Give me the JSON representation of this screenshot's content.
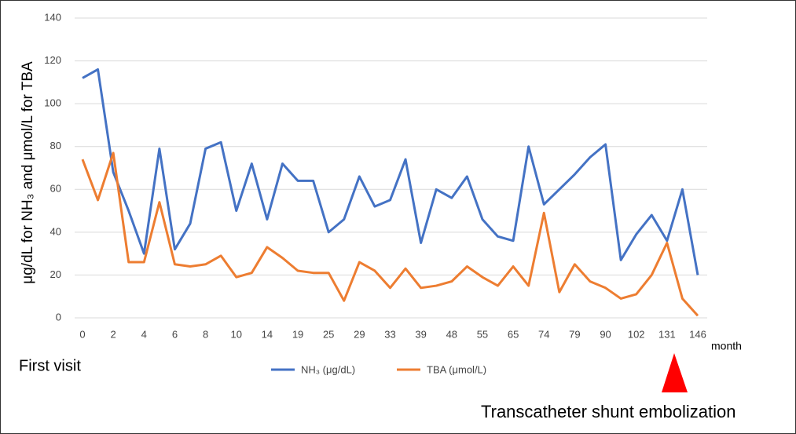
{
  "chart_data": {
    "type": "line",
    "y_label": "μg/dL for NH₃ and μmol/L for TBA",
    "x_unit": "month",
    "annotations": [
      "First visit",
      "Transcatheter shunt embolization"
    ],
    "categories": [
      "0",
      null,
      "2",
      null,
      "4",
      null,
      "6",
      null,
      "8",
      null,
      "10",
      null,
      "14",
      null,
      "19",
      null,
      "25",
      null,
      "29",
      null,
      "33",
      null,
      "39",
      null,
      "48",
      null,
      "55",
      null,
      "65",
      null,
      "74",
      null,
      "79",
      null,
      "90",
      null,
      "102",
      null,
      "131",
      null,
      "146"
    ],
    "series": [
      {
        "name": "NH₃ (μg/dL)",
        "color": "#4472c4",
        "values": [
          112,
          116,
          68,
          50,
          30,
          79,
          32,
          44,
          79,
          82,
          50,
          72,
          46,
          72,
          64,
          64,
          40,
          46,
          66,
          52,
          55,
          74,
          35,
          60,
          56,
          66,
          46,
          38,
          36,
          80,
          53,
          60,
          67,
          75,
          81,
          27,
          39,
          48,
          36,
          60,
          20
        ]
      },
      {
        "name": "TBA (μmol/L)",
        "color": "#ed7d31",
        "values": [
          74,
          55,
          77,
          26,
          26,
          54,
          25,
          24,
          25,
          29,
          19,
          21,
          33,
          28,
          22,
          21,
          21,
          8,
          26,
          22,
          14,
          23,
          14,
          15,
          17,
          24,
          19,
          15,
          24,
          15,
          49,
          12,
          25,
          17,
          14,
          9,
          11,
          20,
          35,
          9,
          1
        ]
      }
    ],
    "ylim": [
      0,
      140
    ],
    "yticks": [
      0,
      20,
      40,
      60,
      80,
      100,
      120,
      140
    ],
    "grid": true
  }
}
